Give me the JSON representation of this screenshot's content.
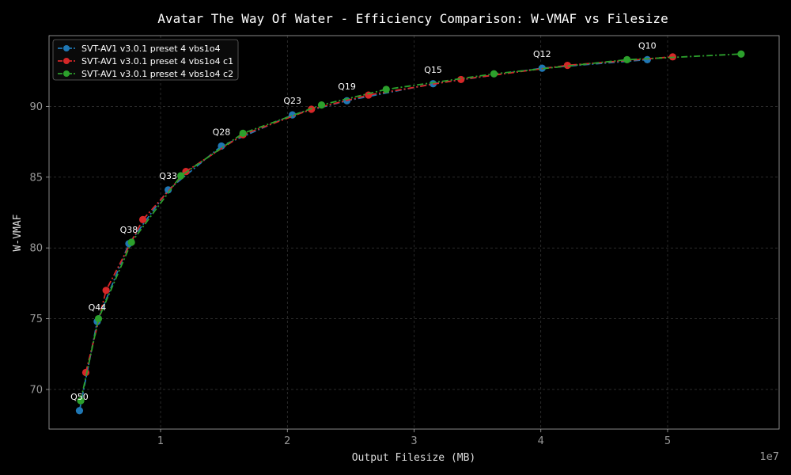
{
  "chart_data": {
    "type": "line",
    "title": "Avatar The Way Of Water - Efficiency Comparison: W-VMAF vs Filesize",
    "xlabel": "Output Filesize (MB)",
    "ylabel": "W-VMAF",
    "x_offset_label": "1e7",
    "xlim": [
      1200000,
      58800000
    ],
    "ylim": [
      67.2,
      95.0
    ],
    "x_ticks": [
      10000000,
      20000000,
      30000000,
      40000000,
      50000000
    ],
    "x_tick_labels": [
      "1",
      "2",
      "3",
      "4",
      "5"
    ],
    "y_ticks": [
      70,
      75,
      80,
      85,
      90
    ],
    "y_tick_labels": [
      "70",
      "75",
      "80",
      "85",
      "90"
    ],
    "grid": true,
    "legend_position": "top-left",
    "series": [
      {
        "name": "SVT-AV1 v3.0.1 preset 4 vbs1o4",
        "color": "#1f77b4",
        "linestyle": "dash-dot",
        "points": [
          {
            "x": 3600000,
            "y": 68.5,
            "label": "Q50"
          },
          {
            "x": 5000000,
            "y": 74.8,
            "label": "Q44"
          },
          {
            "x": 7500000,
            "y": 80.3,
            "label": "Q38"
          },
          {
            "x": 10600000,
            "y": 84.1,
            "label": "Q33"
          },
          {
            "x": 14800000,
            "y": 87.2,
            "label": "Q28"
          },
          {
            "x": 20400000,
            "y": 89.4,
            "label": "Q23"
          },
          {
            "x": 24700000,
            "y": 90.4,
            "label": "Q19"
          },
          {
            "x": 31500000,
            "y": 91.6,
            "label": "Q15"
          },
          {
            "x": 40100000,
            "y": 92.7,
            "label": "Q12"
          },
          {
            "x": 48400000,
            "y": 93.3,
            "label": "Q10"
          }
        ]
      },
      {
        "name": "SVT-AV1 v3.0.1 preset 4 vbs1o4 c1",
        "color": "#d62728",
        "linestyle": "dash-dot",
        "points": [
          {
            "x": 4100000,
            "y": 71.2
          },
          {
            "x": 5700000,
            "y": 77.0
          },
          {
            "x": 8600000,
            "y": 82.0
          },
          {
            "x": 12000000,
            "y": 85.4
          },
          {
            "x": 16500000,
            "y": 88.0
          },
          {
            "x": 21900000,
            "y": 89.8
          },
          {
            "x": 26400000,
            "y": 90.8
          },
          {
            "x": 33700000,
            "y": 91.9
          },
          {
            "x": 42100000,
            "y": 92.9
          },
          {
            "x": 50400000,
            "y": 93.5
          }
        ]
      },
      {
        "name": "SVT-AV1 v3.0.1 preset 4 vbs1o4 c2",
        "color": "#2ca02c",
        "linestyle": "dash-dot",
        "points": [
          {
            "x": 3700000,
            "y": 69.2
          },
          {
            "x": 5100000,
            "y": 75.0
          },
          {
            "x": 7700000,
            "y": 80.4
          },
          {
            "x": 11600000,
            "y": 85.1
          },
          {
            "x": 16500000,
            "y": 88.1
          },
          {
            "x": 22700000,
            "y": 90.1
          },
          {
            "x": 27800000,
            "y": 91.2
          },
          {
            "x": 36300000,
            "y": 92.3
          },
          {
            "x": 46800000,
            "y": 93.3
          },
          {
            "x": 55800000,
            "y": 93.7
          }
        ]
      }
    ]
  }
}
